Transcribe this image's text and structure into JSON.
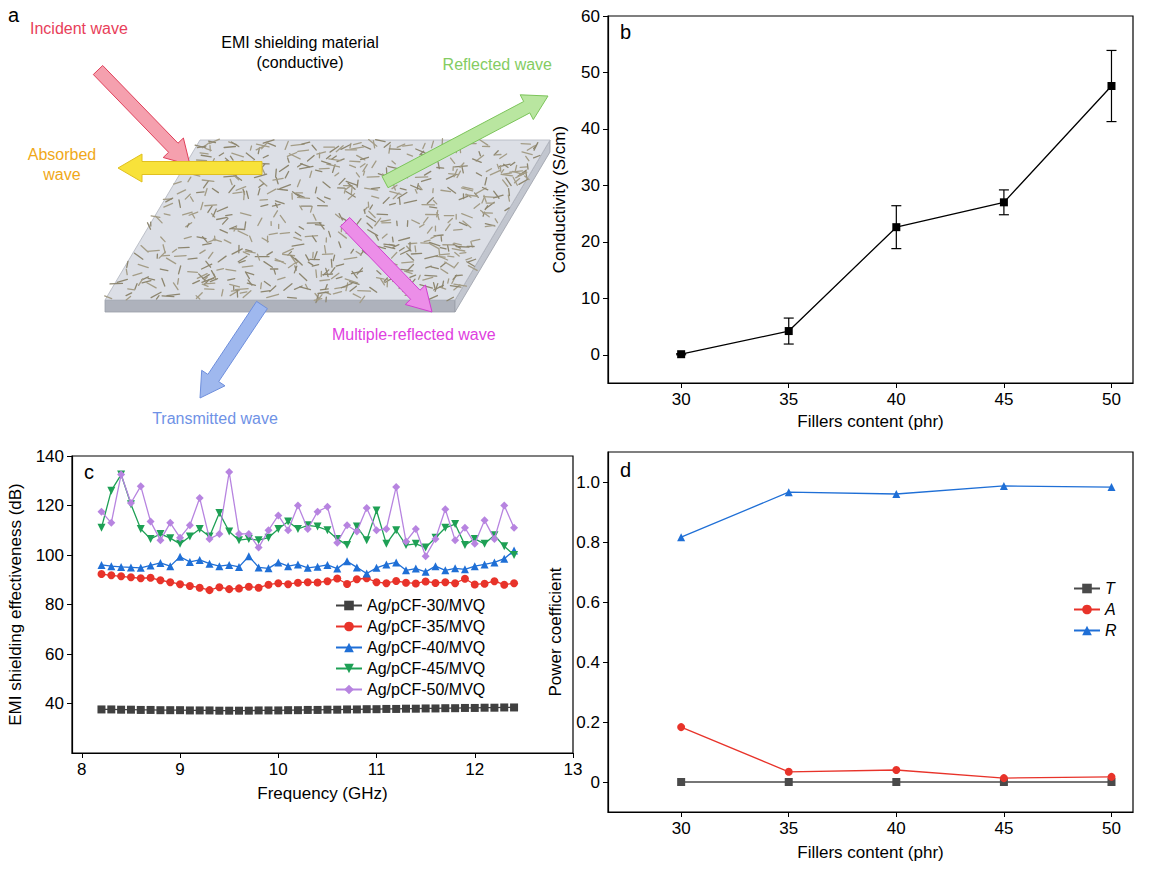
{
  "diagram": {
    "panel": "a",
    "material": {
      "lines": [
        "EMI shielding material",
        "(conductive)"
      ]
    },
    "waves": {
      "incident": {
        "lines": [
          "Incident wave"
        ]
      },
      "reflected": {
        "lines": [
          "Reflected wave"
        ]
      },
      "absorbed": {
        "lines": [
          "Absorbed",
          "wave"
        ]
      },
      "multiple": {
        "lines": [
          "Multiple-reflected wave"
        ]
      },
      "transmitted": {
        "lines": [
          "Transmitted wave"
        ]
      }
    }
  },
  "chart_data": [
    {
      "panel": "b",
      "type": "line",
      "x": [
        30,
        35,
        40,
        45,
        50
      ],
      "xlabel": "Fillers content (phr)",
      "ylabel": "Conductivity (S/cm)",
      "series": [
        {
          "color": "#000000",
          "marker": "square",
          "values": [
            0.1,
            4.2,
            22.6,
            27.0,
            47.6
          ],
          "errors": [
            0.1,
            2.3,
            3.8,
            2.2,
            6.3
          ]
        }
      ],
      "xlim": [
        26.6,
        51
      ],
      "xticks": [
        30,
        35,
        40,
        45,
        50
      ],
      "ylim": [
        -5,
        60
      ],
      "yticks": [
        0,
        10,
        20,
        30,
        40,
        50,
        60
      ],
      "grid": false
    },
    {
      "panel": "c",
      "type": "line",
      "x": [
        8.2,
        8.3,
        8.4,
        8.5,
        8.6,
        8.7,
        8.8,
        8.9,
        9.0,
        9.1,
        9.2,
        9.3,
        9.4,
        9.5,
        9.6,
        9.7,
        9.8,
        9.9,
        10.0,
        10.1,
        10.2,
        10.3,
        10.4,
        10.5,
        10.6,
        10.7,
        10.8,
        10.9,
        11.0,
        11.1,
        11.2,
        11.3,
        11.4,
        11.5,
        11.6,
        11.7,
        11.8,
        11.9,
        12.0,
        12.1,
        12.2,
        12.3,
        12.4
      ],
      "xlabel": "Frequency (GHz)",
      "ylabel": "EMI shielding effectiveness (dB)",
      "series": [
        {
          "name": "Ag/pCF-30/MVQ",
          "color": "#404040",
          "marker": "square",
          "values": [
            37.6,
            37.6,
            37.5,
            37.5,
            37.4,
            37.4,
            37.3,
            37.3,
            37.3,
            37.2,
            37.2,
            37.2,
            37.1,
            37.1,
            37.1,
            37.1,
            37.2,
            37.2,
            37.2,
            37.3,
            37.3,
            37.4,
            37.4,
            37.5,
            37.5,
            37.6,
            37.6,
            37.7,
            37.7,
            37.8,
            37.8,
            37.9,
            37.9,
            38.0,
            38.0,
            38.1,
            38.1,
            38.2,
            38.2,
            38.3,
            38.3,
            38.4,
            38.4
          ]
        },
        {
          "name": "Ag/pCF-35/MVQ",
          "color": "#e8332a",
          "marker": "circle",
          "values": [
            92.3,
            91.8,
            91.4,
            91.0,
            90.6,
            90.8,
            89.8,
            89.0,
            88.2,
            87.5,
            86.8,
            85.8,
            87.0,
            86.2,
            86.5,
            87.2,
            86.8,
            88.0,
            88.6,
            88.2,
            88.8,
            89.0,
            88.9,
            89.4,
            90.5,
            88.3,
            90.2,
            90.6,
            89.0,
            88.6,
            89.5,
            88.8,
            88.5,
            89.3,
            88.7,
            89.0,
            88.6,
            90.4,
            88.1,
            88.4,
            89.4,
            88.0,
            88.6
          ]
        },
        {
          "name": "Ag/pCF-40/MVQ",
          "color": "#1f6fd6",
          "marker": "triangle",
          "values": [
            96.0,
            95.5,
            95.2,
            95.0,
            94.8,
            95.8,
            96.8,
            95.5,
            99.3,
            97.2,
            98.0,
            96.5,
            95.5,
            96.0,
            95.2,
            99.5,
            95.0,
            94.6,
            97.0,
            95.5,
            96.2,
            94.8,
            95.3,
            96.0,
            94.5,
            97.5,
            95.0,
            92.5,
            94.8,
            96.2,
            97.0,
            93.8,
            94.5,
            93.2,
            95.5,
            93.8,
            94.6,
            94.2,
            95.5,
            96.2,
            97.0,
            98.5,
            101.8
          ]
        },
        {
          "name": "Ag/pCF-45/MVQ",
          "color": "#1ea055",
          "marker": "triangle-down",
          "values": [
            111.0,
            126.0,
            132.5,
            120.5,
            110.5,
            106.5,
            108.5,
            106.8,
            104.5,
            107.5,
            110.5,
            107.5,
            117.0,
            109.5,
            106.0,
            106.5,
            106.0,
            107.0,
            110.5,
            113.5,
            110.5,
            112.0,
            111.5,
            110.0,
            106.5,
            104.0,
            111.5,
            106.0,
            118.0,
            104.5,
            110.0,
            104.0,
            104.5,
            103.0,
            107.0,
            111.0,
            112.5,
            104.0,
            106.5,
            104.5,
            108.0,
            103.5,
            100.0
          ]
        },
        {
          "name": "Ag/pCF-50/MVQ",
          "color": "#b784e0",
          "marker": "diamond",
          "values": [
            117.5,
            113.0,
            132.5,
            121.0,
            127.8,
            113.5,
            106.0,
            113.0,
            107.0,
            112.0,
            123.0,
            106.5,
            108.5,
            133.5,
            108.5,
            108.5,
            103.0,
            110.0,
            116.0,
            110.0,
            120.0,
            110.5,
            117.5,
            119.5,
            105.0,
            112.0,
            109.5,
            119.0,
            110.0,
            110.5,
            127.5,
            105.5,
            110.5,
            99.5,
            106.5,
            118.5,
            106.0,
            111.0,
            104.5,
            114.0,
            106.5,
            120.0,
            111.0
          ]
        }
      ],
      "xlim": [
        7.9,
        13
      ],
      "xticks": [
        8,
        9,
        10,
        11,
        12,
        13
      ],
      "ylim": [
        20,
        140
      ],
      "yticks": [
        40,
        60,
        80,
        100,
        120,
        140
      ],
      "grid": false,
      "legend": "lower right"
    },
    {
      "panel": "d",
      "type": "line",
      "x": [
        30,
        35,
        40,
        45,
        50
      ],
      "xlabel": "Fillers content (phr)",
      "ylabel": "Power coefficient",
      "series": [
        {
          "name": "T",
          "color": "#4a4a4a",
          "marker": "square",
          "values": [
            0.0,
            0.0,
            0.0,
            0.0,
            0.0
          ]
        },
        {
          "name": "A",
          "color": "#e8332a",
          "marker": "circle",
          "values": [
            0.183,
            0.034,
            0.04,
            0.013,
            0.017
          ]
        },
        {
          "name": "R",
          "color": "#1f6fd6",
          "marker": "triangle",
          "values": [
            0.816,
            0.966,
            0.96,
            0.987,
            0.983
          ]
        }
      ],
      "xlim": [
        26.6,
        51
      ],
      "xticks": [
        30,
        35,
        40,
        45,
        50
      ],
      "ylim": [
        -0.1,
        1.1
      ],
      "yticks": [
        0,
        0.2,
        0.4,
        0.6,
        0.8,
        {
          "value": 1,
          "label": "1.0"
        }
      ],
      "grid": false,
      "legend": "right"
    }
  ]
}
